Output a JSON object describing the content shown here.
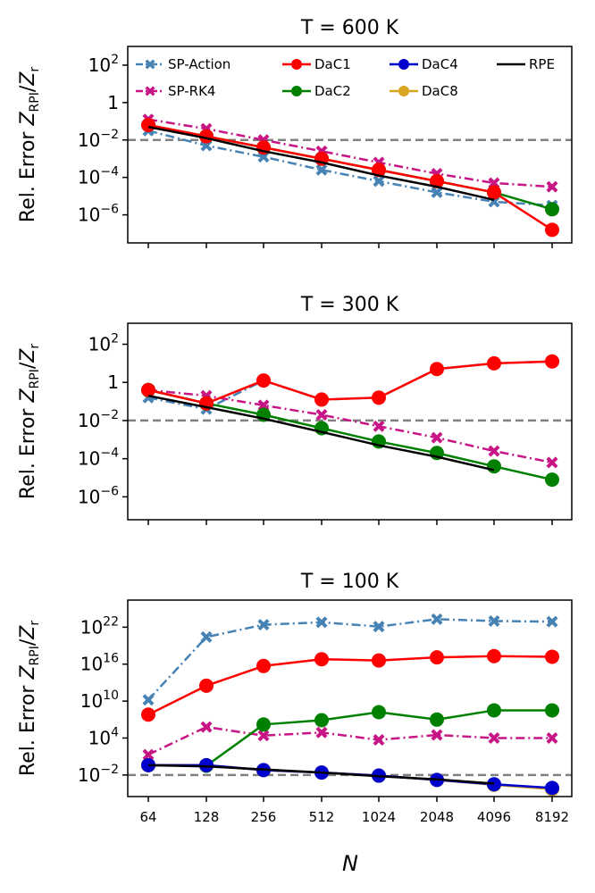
{
  "figure": {
    "xlabel": "N",
    "ylabel_prefix": "Rel. Error",
    "ylabel_ratio": "Z_RPI/Z_r"
  },
  "colors": {
    "sp_action": "#4682b4",
    "sp_rk4": "#c71585",
    "dac1": "#ff0000",
    "dac2": "#008000",
    "dac4": "#0000cd",
    "dac8": "#daa520",
    "rpe": "#000000",
    "threshold": "#808080"
  },
  "legend": [
    {
      "key": "sp_action",
      "label": "SP-Action"
    },
    {
      "key": "dac1",
      "label": "DaC1"
    },
    {
      "key": "dac4",
      "label": "DaC4"
    },
    {
      "key": "rpe",
      "label": "RPE"
    },
    {
      "key": "sp_rk4",
      "label": "SP-RK4"
    },
    {
      "key": "dac2",
      "label": "DaC2"
    },
    {
      "key": "dac8",
      "label": "DaC8"
    }
  ],
  "chart_data": [
    {
      "type": "line",
      "title": "T = 600 K",
      "x": [
        64,
        128,
        256,
        512,
        1024,
        2048,
        4096,
        8192
      ],
      "x_tick_labels": [
        "64",
        "128",
        "256",
        "512",
        "1024",
        "2048",
        "4096",
        "8192"
      ],
      "ylog_range": [
        -7.5,
        3
      ],
      "yticks": [
        {
          "exp": 2,
          "label": "10",
          "sup": "2"
        },
        {
          "exp": 0,
          "label": "1",
          "sup": ""
        },
        {
          "exp": -2,
          "label": "10",
          "sup": "−2"
        },
        {
          "exp": -4,
          "label": "10",
          "sup": "−4"
        },
        {
          "exp": -6,
          "label": "10",
          "sup": "−6"
        }
      ],
      "threshold": 0.01,
      "series": [
        {
          "key": "sp_action",
          "name": "SP-Action",
          "log10": [
            -1.5,
            -2.3,
            -2.9,
            -3.6,
            -4.2,
            -4.8,
            -5.3,
            -5.5
          ]
        },
        {
          "key": "sp_rk4",
          "name": "SP-RK4",
          "log10": [
            -0.9,
            -1.4,
            -2.0,
            -2.6,
            -3.2,
            -3.8,
            -4.3,
            -4.5
          ]
        },
        {
          "key": "dac1",
          "name": "DaC1",
          "log10": [
            -1.2,
            -1.8,
            -2.4,
            -3.0,
            -3.6,
            -4.2,
            -4.8,
            -6.8
          ]
        },
        {
          "key": "dac2",
          "name": "DaC2",
          "log10": [
            -1.2,
            -1.8,
            -2.4,
            -3.0,
            -3.6,
            -4.2,
            -4.8,
            -5.7
          ]
        },
        {
          "key": "rpe",
          "name": "RPE",
          "log10": [
            -1.3,
            -1.9,
            -2.6,
            -3.2,
            -3.9,
            -4.5,
            -5.2,
            null
          ]
        }
      ]
    },
    {
      "type": "line",
      "title": "T = 300 K",
      "x": [
        64,
        128,
        256,
        512,
        1024,
        2048,
        4096,
        8192
      ],
      "x_tick_labels": [
        "64",
        "128",
        "256",
        "512",
        "1024",
        "2048",
        "4096",
        "8192"
      ],
      "ylog_range": [
        -7.2,
        3.1
      ],
      "yticks": [
        {
          "exp": 2,
          "label": "10",
          "sup": "2"
        },
        {
          "exp": 0,
          "label": "1",
          "sup": ""
        },
        {
          "exp": -2,
          "label": "10",
          "sup": "−2"
        },
        {
          "exp": -4,
          "label": "10",
          "sup": "−4"
        },
        {
          "exp": -6,
          "label": "10",
          "sup": "−6"
        }
      ],
      "threshold": 0.01,
      "series": [
        {
          "key": "sp_action",
          "name": "SP-Action",
          "log10": [
            -0.8,
            -1.4,
            0.1,
            -0.9,
            -0.8,
            0.7,
            1.0,
            1.1
          ]
        },
        {
          "key": "sp_rk4",
          "name": "SP-RK4",
          "log10": [
            -0.4,
            -0.7,
            -1.2,
            -1.7,
            -2.3,
            -2.9,
            -3.6,
            -4.2
          ]
        },
        {
          "key": "dac1",
          "name": "DaC1",
          "log10": [
            -0.4,
            -1.1,
            0.1,
            -0.9,
            -0.8,
            0.7,
            1.0,
            1.1
          ]
        },
        {
          "key": "dac2",
          "name": "DaC2",
          "log10": [
            -0.4,
            -1.1,
            -1.7,
            -2.4,
            -3.1,
            -3.7,
            -4.4,
            -5.1
          ]
        },
        {
          "key": "rpe",
          "name": "RPE",
          "log10": [
            -0.7,
            -1.3,
            -1.9,
            -2.6,
            -3.3,
            -3.9,
            -4.6,
            null
          ]
        }
      ]
    },
    {
      "type": "line",
      "title": "T = 100 K",
      "x": [
        64,
        128,
        256,
        512,
        1024,
        2048,
        4096,
        8192
      ],
      "x_tick_labels": [
        "64",
        "128",
        "256",
        "512",
        "1024",
        "2048",
        "4096",
        "8192"
      ],
      "ylog_range": [
        -5.5,
        26.4
      ],
      "yticks": [
        {
          "exp": 22,
          "label": "10",
          "sup": "22"
        },
        {
          "exp": 16,
          "label": "10",
          "sup": "16"
        },
        {
          "exp": 10,
          "label": "10",
          "sup": "10"
        },
        {
          "exp": 4,
          "label": "10",
          "sup": "4"
        },
        {
          "exp": -2,
          "label": "10",
          "sup": "−2"
        }
      ],
      "threshold": 0.01,
      "series": [
        {
          "key": "sp_action",
          "name": "SP-Action",
          "log10": [
            10.2,
            20.4,
            22.4,
            22.8,
            22.1,
            23.3,
            23.0,
            22.9
          ]
        },
        {
          "key": "sp_rk4",
          "name": "SP-RK4",
          "log10": [
            1.3,
            5.8,
            4.4,
            4.9,
            3.7,
            4.5,
            4.0,
            4.0
          ]
        },
        {
          "key": "dac1",
          "name": "DaC1",
          "log10": [
            7.8,
            12.5,
            15.7,
            16.8,
            16.6,
            17.1,
            17.3,
            17.2
          ]
        },
        {
          "key": "dac2",
          "name": "DaC2",
          "log10": [
            -0.4,
            -0.5,
            6.2,
            6.9,
            8.2,
            7.0,
            8.5,
            8.5
          ]
        },
        {
          "key": "dac4",
          "name": "DaC4",
          "log10": [
            -0.4,
            -0.4,
            -1.2,
            -1.6,
            -2.1,
            -2.8,
            -3.5,
            -4.1
          ]
        },
        {
          "key": "dac8",
          "name": "DaC8",
          "log10": [
            -0.4,
            -0.4,
            -1.2,
            -1.6,
            -2.1,
            -2.8,
            -3.6,
            -4.3
          ]
        },
        {
          "key": "rpe",
          "name": "RPE",
          "log10": [
            -0.4,
            -0.6,
            -1.1,
            -1.6,
            -2.2,
            -2.7,
            -3.4,
            null
          ]
        }
      ]
    }
  ]
}
